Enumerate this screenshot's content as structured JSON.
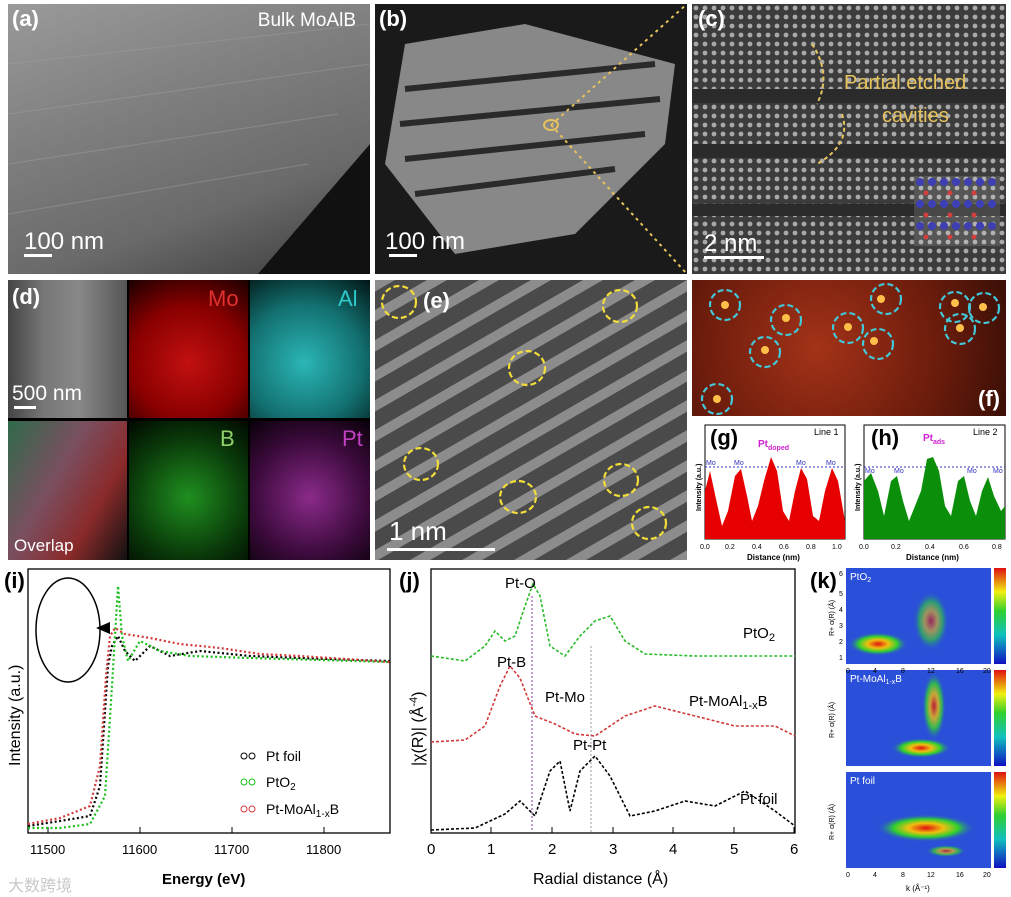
{
  "panels": {
    "a": {
      "label": "(a)",
      "title": "Bulk MoAlB",
      "scale": "100 nm"
    },
    "b": {
      "label": "(b)",
      "scale": "100 nm"
    },
    "c": {
      "label": "(c)",
      "annotation_line1": "Partial etched",
      "annotation_line2": "cavities",
      "scale": "2 nm"
    },
    "d": {
      "label": "(d)",
      "scale": "500 nm",
      "maps": [
        "Mo",
        "Al",
        "B",
        "Pt"
      ],
      "overlap": "Overlap"
    },
    "e": {
      "label": "(e)",
      "scale": "1 nm"
    },
    "f": {
      "label": "(f)"
    },
    "g": {
      "label": "(g)",
      "line": "Line 1",
      "peak": "Pt",
      "peak_sub": "doped",
      "mo": "Mo",
      "ylabel": "Intensity (a.u.)",
      "xlabel": "Distance (nm)",
      "ticks": [
        "0.0",
        "0.2",
        "0.4",
        "0.6",
        "0.8",
        "1.0"
      ]
    },
    "h": {
      "label": "(h)",
      "line": "Line 2",
      "peak": "Pt",
      "peak_sub": "ads",
      "mo": "Mo",
      "ylabel": "Intensity (a.u.)",
      "xlabel": "Distance (nm)",
      "ticks": [
        "0.0",
        "0.2",
        "0.4",
        "0.6",
        "0.8"
      ]
    },
    "i": {
      "label": "(i)",
      "ylabel": "Intensity (a.u.)",
      "xlabel": "Energy (eV)",
      "ticks": [
        "11500",
        "11600",
        "11700",
        "11800"
      ],
      "legend": [
        "Pt foil",
        "PtO",
        "Pt-MoAl",
        "B"
      ],
      "legend_sub": [
        "",
        "2",
        "1-x",
        ""
      ]
    },
    "j": {
      "label": "(j)",
      "ylabel": "|χ(R)| (Å",
      "ylabel_sup": "-4",
      "xlabel": "Radial distance (Å)",
      "ticks": [
        "0",
        "1",
        "2",
        "3",
        "4",
        "5",
        "6"
      ],
      "peaks": [
        "Pt-O",
        "Pt-B",
        "Pt-Mo",
        "Pt-Pt"
      ],
      "curves": [
        "PtO",
        "Pt-MoAl",
        "B",
        "Pt foil"
      ],
      "curve_sub": [
        "2",
        "1-x"
      ]
    },
    "k": {
      "label": "(k)",
      "maps": [
        "PtO",
        "Pt-MoAl",
        "Pt foil"
      ],
      "map_sub": [
        "2",
        "1-x"
      ],
      "map_tail": [
        "",
        "B",
        ""
      ],
      "xticks": [
        "0",
        "4",
        "8",
        "12",
        "16",
        "20"
      ],
      "yticks": [
        "1",
        "2",
        "3",
        "4",
        "5",
        "6"
      ],
      "xlabel": "k (Å⁻¹)",
      "ylabel": "R+ α(R) (Å)"
    }
  },
  "watermark": "大数跨境"
}
